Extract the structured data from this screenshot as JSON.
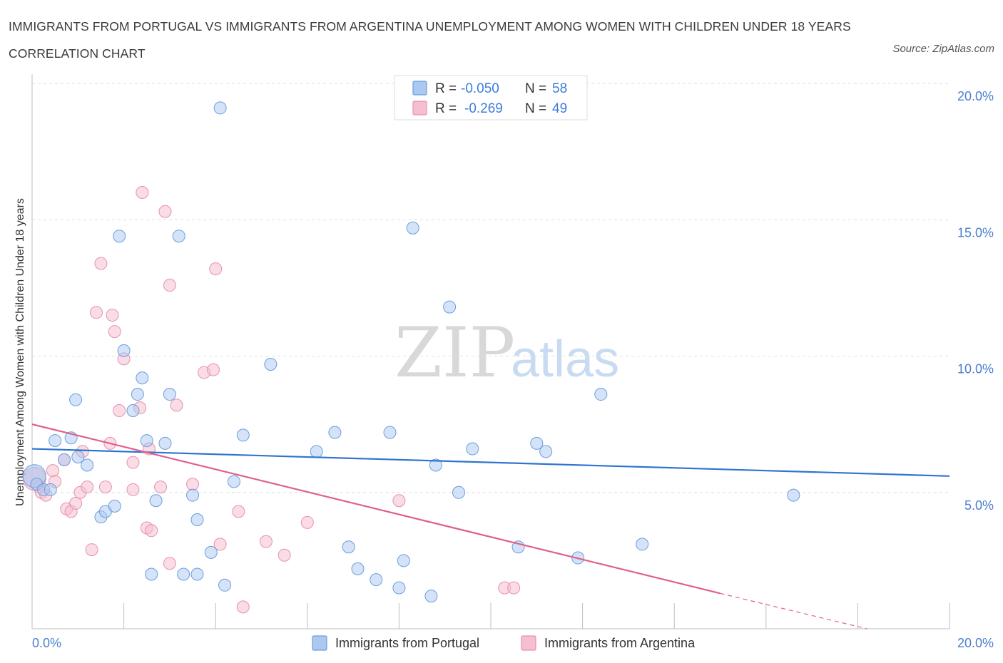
{
  "title": "IMMIGRANTS FROM PORTUGAL VS IMMIGRANTS FROM ARGENTINA UNEMPLOYMENT AMONG WOMEN WITH CHILDREN UNDER 18 YEARS CORRELATION CHART",
  "source": "Source: ZipAtlas.com",
  "watermark": {
    "zip": "ZIP",
    "atlas": "atlas"
  },
  "colors": {
    "portugal_fill": "#aac8f0",
    "portugal_stroke": "#6a9ee0",
    "portugal_line": "#2f74d0",
    "argentina_fill": "#f6bfd0",
    "argentina_stroke": "#e890b0",
    "argentina_line": "#e0608e",
    "tick_label": "#4a7fd0"
  },
  "legend": {
    "r_label": "R =",
    "n_label": "N =",
    "portugal": {
      "r": "-0.050",
      "n": "58"
    },
    "argentina": {
      "r": "-0.269",
      "n": "49"
    }
  },
  "chart_data": {
    "type": "scatter",
    "title": "IMMIGRANTS FROM PORTUGAL VS IMMIGRANTS FROM ARGENTINA UNEMPLOYMENT AMONG WOMEN WITH CHILDREN UNDER 18 YEARS CORRELATION CHART",
    "xlabel": "",
    "ylabel": "Unemployment Among Women with Children Under 18 years",
    "xlim": [
      0,
      20
    ],
    "ylim": [
      0,
      20
    ],
    "x_tick_labels": [
      "0.0%",
      "20.0%"
    ],
    "y_ticks": [
      5,
      10,
      15,
      20
    ],
    "y_tick_labels": [
      "5.0%",
      "10.0%",
      "15.0%",
      "20.0%"
    ],
    "grid": "horizontal dashed",
    "legend_position": "top-center",
    "series": [
      {
        "name": "Immigrants from Portugal",
        "trend": {
          "x": [
            0,
            20
          ],
          "y": [
            6.6,
            5.6
          ]
        },
        "points": [
          [
            0.05,
            5.6
          ],
          [
            0.1,
            5.3
          ],
          [
            0.25,
            5.1
          ],
          [
            0.4,
            5.1
          ],
          [
            0.5,
            6.9
          ],
          [
            0.7,
            6.2
          ],
          [
            0.95,
            8.4
          ],
          [
            1.0,
            6.3
          ],
          [
            0.85,
            7.0
          ],
          [
            1.2,
            6.0
          ],
          [
            1.5,
            4.1
          ],
          [
            1.6,
            4.3
          ],
          [
            1.8,
            4.5
          ],
          [
            1.9,
            14.4
          ],
          [
            2.0,
            10.2
          ],
          [
            2.2,
            8.0
          ],
          [
            2.3,
            8.6
          ],
          [
            2.4,
            9.2
          ],
          [
            2.5,
            6.9
          ],
          [
            2.6,
            2.0
          ],
          [
            2.7,
            4.7
          ],
          [
            2.9,
            6.8
          ],
          [
            3.0,
            8.6
          ],
          [
            3.2,
            14.4
          ],
          [
            3.3,
            2.0
          ],
          [
            3.5,
            4.9
          ],
          [
            3.6,
            4.0
          ],
          [
            3.6,
            2.0
          ],
          [
            3.9,
            2.8
          ],
          [
            4.1,
            19.1
          ],
          [
            4.2,
            1.6
          ],
          [
            4.4,
            5.4
          ],
          [
            4.6,
            7.1
          ],
          [
            5.2,
            9.7
          ],
          [
            6.2,
            6.5
          ],
          [
            6.6,
            7.2
          ],
          [
            6.9,
            3.0
          ],
          [
            7.1,
            2.2
          ],
          [
            7.5,
            1.8
          ],
          [
            7.8,
            7.2
          ],
          [
            8.0,
            1.5
          ],
          [
            8.1,
            2.5
          ],
          [
            8.3,
            14.7
          ],
          [
            8.7,
            1.2
          ],
          [
            8.8,
            6.0
          ],
          [
            9.1,
            11.8
          ],
          [
            9.3,
            5.0
          ],
          [
            9.6,
            6.6
          ],
          [
            10.6,
            3.0
          ],
          [
            11.0,
            6.8
          ],
          [
            11.2,
            6.5
          ],
          [
            11.9,
            2.6
          ],
          [
            12.4,
            8.6
          ],
          [
            13.3,
            3.1
          ],
          [
            16.6,
            4.9
          ]
        ]
      },
      {
        "name": "Immigrants from Argentina",
        "trend": {
          "x": [
            0,
            15
          ],
          "y": [
            7.5,
            1.3
          ]
        },
        "trend_extension": {
          "x": [
            15,
            18.2
          ],
          "y": [
            1.3,
            0.0
          ]
        },
        "points": [
          [
            0.05,
            5.5
          ],
          [
            0.15,
            5.2
          ],
          [
            0.2,
            5.0
          ],
          [
            0.3,
            4.9
          ],
          [
            0.45,
            5.8
          ],
          [
            0.5,
            5.4
          ],
          [
            0.7,
            6.2
          ],
          [
            0.75,
            4.4
          ],
          [
            0.85,
            4.3
          ],
          [
            0.95,
            4.6
          ],
          [
            1.05,
            5.0
          ],
          [
            1.1,
            6.5
          ],
          [
            1.2,
            5.2
          ],
          [
            1.3,
            2.9
          ],
          [
            1.4,
            11.6
          ],
          [
            1.5,
            13.4
          ],
          [
            1.6,
            5.2
          ],
          [
            1.7,
            6.8
          ],
          [
            1.75,
            11.5
          ],
          [
            1.8,
            10.9
          ],
          [
            1.9,
            8.0
          ],
          [
            2.0,
            9.9
          ],
          [
            2.2,
            6.1
          ],
          [
            2.2,
            5.1
          ],
          [
            2.35,
            8.1
          ],
          [
            2.4,
            16.0
          ],
          [
            2.5,
            3.7
          ],
          [
            2.55,
            6.6
          ],
          [
            2.6,
            3.6
          ],
          [
            2.8,
            5.2
          ],
          [
            2.9,
            15.3
          ],
          [
            3.0,
            2.4
          ],
          [
            3.0,
            12.6
          ],
          [
            3.15,
            8.2
          ],
          [
            3.5,
            5.3
          ],
          [
            3.75,
            9.4
          ],
          [
            3.95,
            9.5
          ],
          [
            4.0,
            13.2
          ],
          [
            4.1,
            3.1
          ],
          [
            4.5,
            4.3
          ],
          [
            4.6,
            0.8
          ],
          [
            5.1,
            3.2
          ],
          [
            5.5,
            2.7
          ],
          [
            6.0,
            3.9
          ],
          [
            8.0,
            4.7
          ],
          [
            10.3,
            1.5
          ],
          [
            10.5,
            1.5
          ]
        ]
      }
    ]
  },
  "bottom_legend": {
    "portugal": "Immigrants from Portugal",
    "argentina": "Immigrants from Argentina"
  }
}
